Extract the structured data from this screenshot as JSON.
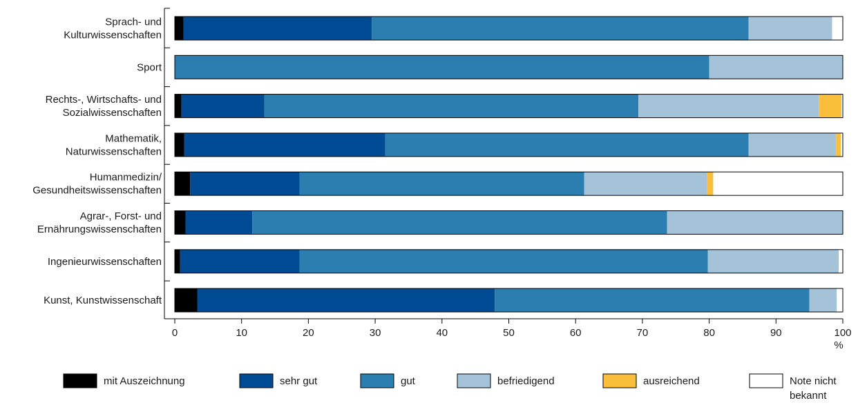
{
  "chart_data": {
    "type": "bar",
    "orientation": "horizontal",
    "stacked": true,
    "unit": "%",
    "xlim": [
      0,
      100
    ],
    "xticks": [
      0,
      10,
      20,
      30,
      40,
      50,
      60,
      70,
      80,
      90,
      100
    ],
    "grid": false,
    "legend_position": "bottom",
    "categories": [
      [
        "Sprach- und",
        "Kulturwissenschaften"
      ],
      [
        "Sport"
      ],
      [
        "Rechts-, Wirtschafts- und",
        "Sozialwissenschaften"
      ],
      [
        "Mathematik,",
        "Naturwissenschaften"
      ],
      [
        "Humanmedizin/",
        "Gesundheitswissenschaften"
      ],
      [
        "Agrar-, Forst- und",
        "Ernährungswissenschaften"
      ],
      [
        "Ingenieurwissenschaften"
      ],
      [
        "Kunst, Kunstwissenschaft"
      ]
    ],
    "series": [
      {
        "name": [
          "mit Auszeichnung"
        ],
        "color": "#000000",
        "values": [
          1.3,
          0,
          1.0,
          1.4,
          2.3,
          1.6,
          0.8,
          3.4
        ]
      },
      {
        "name": [
          "sehr gut"
        ],
        "color": "#004b93",
        "values": [
          28.2,
          0,
          12.4,
          30.1,
          16.4,
          10.0,
          17.9,
          44.5
        ]
      },
      {
        "name": [
          "gut"
        ],
        "color": "#2a7eb0",
        "values": [
          56.4,
          80.0,
          56.0,
          54.4,
          42.6,
          62.1,
          61.1,
          47.1
        ]
      },
      {
        "name": [
          "befriedigend"
        ],
        "color": "#a4c2d8",
        "values": [
          12.5,
          20.0,
          27.0,
          13.1,
          18.4,
          26.3,
          19.6,
          4.1
        ]
      },
      {
        "name": [
          "ausreichend"
        ],
        "color": "#f9bf3c",
        "values": [
          0,
          0,
          3.4,
          0.7,
          0.9,
          0,
          0,
          0
        ]
      },
      {
        "name": [
          "Note nicht",
          "bekannt"
        ],
        "color": "#ffffff",
        "values": [
          1.6,
          0,
          0.2,
          0.3,
          19.4,
          0,
          0.6,
          0.9
        ]
      }
    ]
  }
}
